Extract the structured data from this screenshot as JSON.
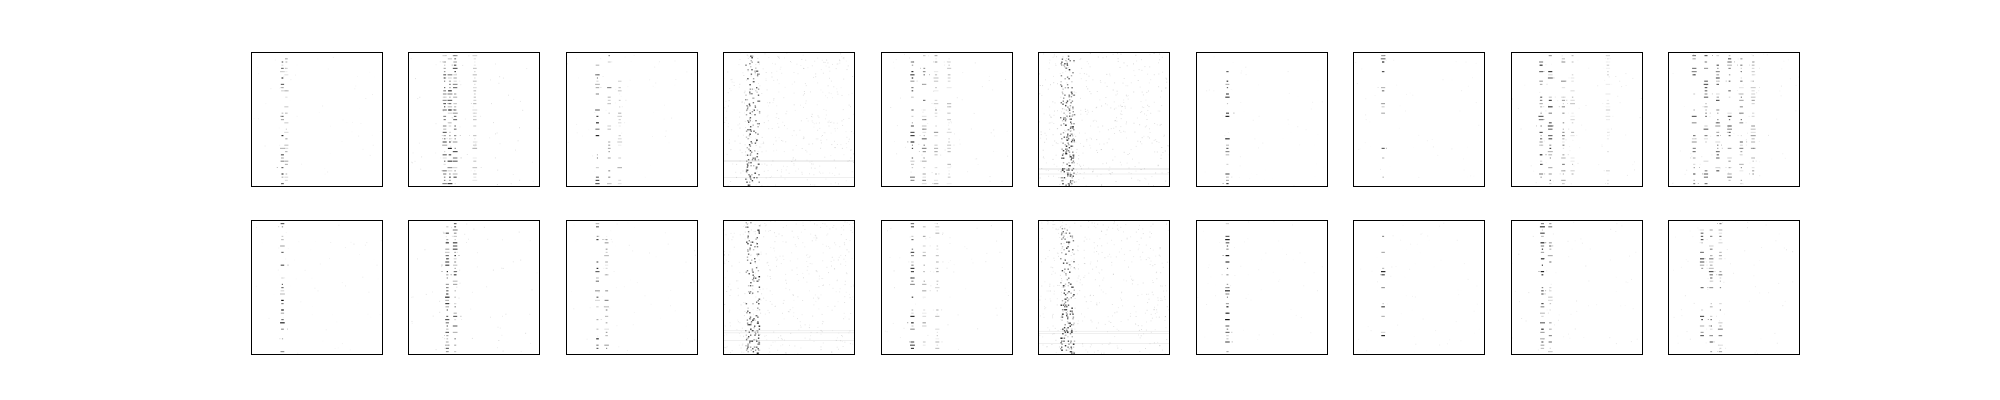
{
  "figure": {
    "background": "#ffffff",
    "frame_color": "#000000",
    "ink_color": "#000000"
  },
  "chart_data": {
    "type": "heatmap",
    "grid": {
      "rows": 2,
      "cols": 10
    },
    "colormap": "gray_r",
    "axes_ticks": "hidden",
    "value_range": [
      0,
      1
    ],
    "panels": [
      {
        "row": 0,
        "col": 0,
        "pattern": "spectro",
        "seed": 11,
        "lines": [
          {
            "x": 0.24,
            "w": 0.9
          },
          {
            "x": 0.27,
            "w": 0.4
          }
        ],
        "rowDensity": 0.34,
        "noise": 0.0
      },
      {
        "row": 0,
        "col": 1,
        "pattern": "spectro",
        "seed": 12,
        "lines": [
          {
            "x": 0.28,
            "w": 0.7
          },
          {
            "x": 0.32,
            "w": 0.9
          },
          {
            "x": 0.36,
            "w": 0.7
          },
          {
            "x": 0.51,
            "w": 0.3
          }
        ],
        "rowDensity": 0.6,
        "noise": 0.01
      },
      {
        "row": 0,
        "col": 2,
        "pattern": "spectro",
        "seed": 13,
        "lines": [
          {
            "x": 0.24,
            "w": 0.9
          },
          {
            "x": 0.33,
            "w": 0.5
          },
          {
            "x": 0.41,
            "w": 0.3
          }
        ],
        "rowDensity": 0.28,
        "noise": 0.0
      },
      {
        "row": 0,
        "col": 3,
        "pattern": "dense",
        "seed": 14,
        "lines": [
          {
            "x": 0.2,
            "w": 0.8
          }
        ],
        "rowDensity": 0,
        "noise": 0.05
      },
      {
        "row": 0,
        "col": 4,
        "pattern": "spectro",
        "seed": 15,
        "lines": [
          {
            "x": 0.24,
            "w": 0.9
          },
          {
            "x": 0.33,
            "w": 0.6
          },
          {
            "x": 0.42,
            "w": 0.4
          },
          {
            "x": 0.52,
            "w": 0.3
          }
        ],
        "rowDensity": 0.42,
        "noise": 0.005
      },
      {
        "row": 0,
        "col": 5,
        "pattern": "dense",
        "seed": 16,
        "lines": [
          {
            "x": 0.2,
            "w": 1.0
          }
        ],
        "rowDensity": 0,
        "noise": 0.07
      },
      {
        "row": 0,
        "col": 6,
        "pattern": "spectro",
        "seed": 17,
        "lines": [
          {
            "x": 0.24,
            "w": 0.9
          }
        ],
        "rowDensity": 0.3,
        "noise": 0.0
      },
      {
        "row": 0,
        "col": 7,
        "pattern": "spectro",
        "seed": 18,
        "lines": [
          {
            "x": 0.23,
            "w": 0.9
          }
        ],
        "rowDensity": 0.18,
        "noise": 0.0
      },
      {
        "row": 0,
        "col": 8,
        "pattern": "spectro",
        "seed": 19,
        "lines": [
          {
            "x": 0.23,
            "w": 0.9
          },
          {
            "x": 0.3,
            "w": 0.8
          },
          {
            "x": 0.4,
            "w": 0.5
          },
          {
            "x": 0.47,
            "w": 0.3
          },
          {
            "x": 0.74,
            "w": 0.2
          }
        ],
        "rowDensity": 0.4,
        "noise": 0.005
      },
      {
        "row": 0,
        "col": 9,
        "pattern": "spectro",
        "seed": 20,
        "lines": [
          {
            "x": 0.2,
            "w": 0.7
          },
          {
            "x": 0.29,
            "w": 0.7
          },
          {
            "x": 0.38,
            "w": 0.7
          },
          {
            "x": 0.47,
            "w": 0.7
          },
          {
            "x": 0.56,
            "w": 0.6
          },
          {
            "x": 0.65,
            "w": 0.4
          }
        ],
        "rowDensity": 0.45,
        "noise": 0.005
      },
      {
        "row": 1,
        "col": 0,
        "pattern": "spectro",
        "seed": 21,
        "lines": [
          {
            "x": 0.24,
            "w": 1.0
          }
        ],
        "rowDensity": 0.34,
        "noise": 0.0
      },
      {
        "row": 1,
        "col": 1,
        "pattern": "spectro",
        "seed": 22,
        "lines": [
          {
            "x": 0.3,
            "w": 0.9
          },
          {
            "x": 0.36,
            "w": 0.8
          }
        ],
        "rowDensity": 0.55,
        "noise": 0.01
      },
      {
        "row": 1,
        "col": 2,
        "pattern": "spectro",
        "seed": 23,
        "lines": [
          {
            "x": 0.24,
            "w": 0.9
          },
          {
            "x": 0.31,
            "w": 0.5
          }
        ],
        "rowDensity": 0.3,
        "noise": 0.0
      },
      {
        "row": 1,
        "col": 3,
        "pattern": "dense",
        "seed": 24,
        "lines": [
          {
            "x": 0.2,
            "w": 0.9
          }
        ],
        "rowDensity": 0,
        "noise": 0.05
      },
      {
        "row": 1,
        "col": 4,
        "pattern": "spectro",
        "seed": 25,
        "lines": [
          {
            "x": 0.24,
            "w": 0.9
          },
          {
            "x": 0.33,
            "w": 0.4
          },
          {
            "x": 0.43,
            "w": 0.3
          }
        ],
        "rowDensity": 0.4,
        "noise": 0.005
      },
      {
        "row": 1,
        "col": 5,
        "pattern": "dense",
        "seed": 26,
        "lines": [
          {
            "x": 0.2,
            "w": 0.9
          }
        ],
        "rowDensity": 0,
        "noise": 0.06
      },
      {
        "row": 1,
        "col": 6,
        "pattern": "spectro",
        "seed": 27,
        "lines": [
          {
            "x": 0.24,
            "w": 1.0
          }
        ],
        "rowDensity": 0.45,
        "noise": 0.0
      },
      {
        "row": 1,
        "col": 7,
        "pattern": "spectro",
        "seed": 28,
        "lines": [
          {
            "x": 0.23,
            "w": 0.9
          }
        ],
        "rowDensity": 0.22,
        "noise": 0.0
      },
      {
        "row": 1,
        "col": 8,
        "pattern": "spectro",
        "seed": 29,
        "lines": [
          {
            "x": 0.24,
            "w": 0.9
          },
          {
            "x": 0.3,
            "w": 0.6
          }
        ],
        "rowDensity": 0.28,
        "noise": 0.005
      },
      {
        "row": 1,
        "col": 9,
        "pattern": "spectro",
        "seed": 30,
        "lines": [
          {
            "x": 0.26,
            "w": 0.8
          },
          {
            "x": 0.33,
            "w": 0.7
          },
          {
            "x": 0.4,
            "w": 0.5
          }
        ],
        "rowDensity": 0.35,
        "noise": 0.005
      }
    ]
  }
}
